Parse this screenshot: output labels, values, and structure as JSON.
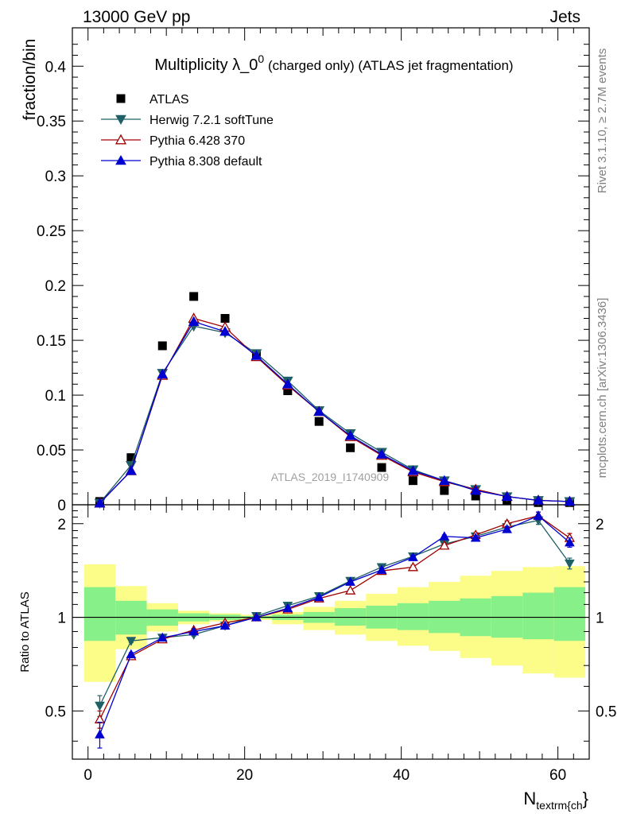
{
  "header": {
    "left": "13000 GeV pp",
    "right": "Jets"
  },
  "side_labels": {
    "rivet": "Rivet 3.1.10, ≥ 2.7M events",
    "mcplots": "mcplots.cern.ch [arXiv:1306.3436]"
  },
  "chart_data": {
    "type": "scatter",
    "title_main": "Multiplicity λ_0",
    "title_sup": "0",
    "title_rest": " (charged only) (ATLAS jet fragmentation)",
    "watermark": "ATLAS_2019_I1740909",
    "xlabel_main": "N",
    "xlabel_sub": "textrm{ch",
    "xlabel_tail": "}",
    "ylabel": "fraction/bin",
    "ratio_ylabel": "Ratio to ATLAS",
    "xlim": [
      -2,
      64
    ],
    "ylim": [
      0,
      0.435
    ],
    "ratio_ylim": [
      0.35,
      2.3
    ],
    "ratio_scale": "log",
    "x_ticks": [
      "0",
      "20",
      "40",
      "60"
    ],
    "y_ticks": [
      "0",
      "0.05",
      "0.1",
      "0.15",
      "0.2",
      "0.25",
      "0.3",
      "0.35",
      "0.4"
    ],
    "ratio_ticks": [
      "0.5",
      "1",
      "2"
    ],
    "legend_position": "top-left",
    "x": [
      1.5,
      5.5,
      9.5,
      13.5,
      17.5,
      21.5,
      25.5,
      29.5,
      33.5,
      37.5,
      41.5,
      45.5,
      49.5,
      53.5,
      57.5,
      61.5
    ],
    "bin_edges": [
      -0.5,
      3.5,
      7.5,
      11.5,
      15.5,
      19.5,
      23.5,
      27.5,
      31.5,
      35.5,
      39.5,
      43.5,
      47.5,
      51.5,
      55.5,
      59.5,
      63.5
    ],
    "series": [
      {
        "name": "ATLAS",
        "color": "#000000",
        "marker": "square",
        "values": [
          0.003,
          0.043,
          0.145,
          0.19,
          0.17,
          0.137,
          0.104,
          0.076,
          0.052,
          0.034,
          0.022,
          0.013,
          0.008,
          0.004,
          0.002,
          0.002
        ]
      },
      {
        "name": "Herwig 7.2.1 softTune",
        "color": "#1f6066",
        "marker": "triangle-down",
        "values": [
          0.0016,
          0.036,
          0.12,
          0.163,
          0.157,
          0.138,
          0.113,
          0.086,
          0.065,
          0.048,
          0.032,
          0.022,
          0.014,
          0.0075,
          0.004,
          0.003
        ],
        "ratio": [
          0.52,
          0.84,
          0.86,
          0.88,
          0.94,
          1.01,
          1.09,
          1.17,
          1.31,
          1.45,
          1.57,
          1.72,
          1.82,
          1.95,
          2.05,
          1.49
        ],
        "ratio_err": [
          0.04,
          0.01,
          0.01,
          0.01,
          0.01,
          0.01,
          0.01,
          0.01,
          0.01,
          0.01,
          0.02,
          0.02,
          0.03,
          0.04,
          0.06,
          0.06
        ]
      },
      {
        "name": "Pythia 6.428 370",
        "color": "#a00000",
        "marker": "triangle-up-open",
        "values": [
          0.0015,
          0.031,
          0.118,
          0.17,
          0.162,
          0.135,
          0.109,
          0.085,
          0.062,
          0.045,
          0.03,
          0.021,
          0.014,
          0.0075,
          0.004,
          0.003
        ],
        "ratio": [
          0.47,
          0.75,
          0.85,
          0.91,
          0.96,
          1.0,
          1.06,
          1.15,
          1.22,
          1.41,
          1.45,
          1.7,
          1.84,
          2.0,
          2.12,
          1.8
        ],
        "ratio_err": [
          0.03,
          0.01,
          0.01,
          0.01,
          0.01,
          0.01,
          0.01,
          0.01,
          0.01,
          0.01,
          0.02,
          0.02,
          0.03,
          0.04,
          0.06,
          0.06
        ]
      },
      {
        "name": "Pythia 8.308 default",
        "color": "#0000d0",
        "marker": "triangle-up",
        "values": [
          0.0014,
          0.031,
          0.119,
          0.167,
          0.158,
          0.136,
          0.11,
          0.085,
          0.063,
          0.046,
          0.031,
          0.022,
          0.013,
          0.0075,
          0.004,
          0.003
        ],
        "ratio": [
          0.42,
          0.76,
          0.86,
          0.9,
          0.94,
          1.0,
          1.07,
          1.16,
          1.3,
          1.42,
          1.56,
          1.82,
          1.8,
          1.92,
          2.12,
          1.74
        ],
        "ratio_err": [
          0.04,
          0.01,
          0.01,
          0.01,
          0.01,
          0.01,
          0.01,
          0.01,
          0.01,
          0.01,
          0.02,
          0.02,
          0.03,
          0.04,
          0.06,
          0.06
        ]
      }
    ],
    "uncertainty_bands": {
      "inner_color": "#88f088",
      "outer_color": "#fcfc88",
      "inner_low": [
        0.84,
        0.88,
        0.94,
        0.97,
        0.98,
        0.99,
        0.98,
        0.96,
        0.94,
        0.92,
        0.91,
        0.89,
        0.87,
        0.86,
        0.85,
        0.84
      ],
      "inner_high": [
        1.25,
        1.13,
        1.06,
        1.03,
        1.02,
        1.01,
        1.02,
        1.04,
        1.07,
        1.09,
        1.11,
        1.13,
        1.15,
        1.17,
        1.2,
        1.25
      ],
      "outer_low": [
        0.62,
        0.79,
        0.9,
        0.95,
        0.97,
        0.98,
        0.95,
        0.91,
        0.88,
        0.84,
        0.81,
        0.78,
        0.74,
        0.7,
        0.66,
        0.64
      ],
      "outer_high": [
        1.48,
        1.26,
        1.11,
        1.05,
        1.03,
        1.02,
        1.04,
        1.08,
        1.13,
        1.19,
        1.25,
        1.3,
        1.36,
        1.41,
        1.45,
        1.46
      ]
    }
  }
}
